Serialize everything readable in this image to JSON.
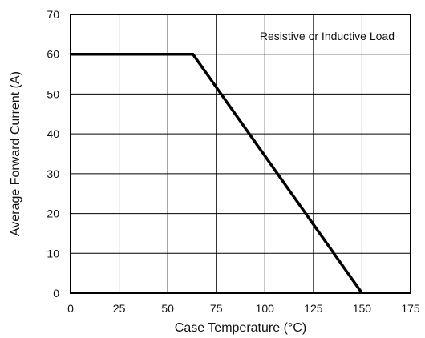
{
  "chart_data": {
    "type": "line",
    "xlabel": "Case Temperature (°C)",
    "ylabel": "Average Forward Current (A)",
    "annotation": "Resistive or Inductive Load",
    "xlim": [
      0,
      175
    ],
    "ylim": [
      0,
      70
    ],
    "x_ticks": [
      0,
      25,
      50,
      75,
      100,
      125,
      150,
      175
    ],
    "y_ticks": [
      0,
      10,
      20,
      30,
      40,
      50,
      60,
      70
    ],
    "grid": true,
    "series": [
      {
        "x": [
          0,
          63,
          150
        ],
        "y": [
          60,
          60,
          0
        ],
        "color": "#000000"
      }
    ]
  }
}
